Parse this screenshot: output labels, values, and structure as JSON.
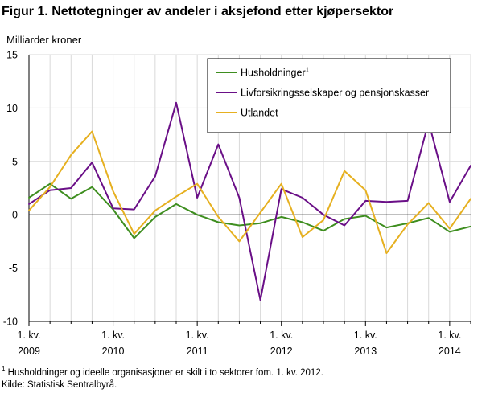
{
  "title": "Figur 1. Nettotegninger av andeler i aksjefond etter kjøpersektor",
  "y_unit_label": "Milliarder  kroner",
  "footnote_mark": "1",
  "footnote_text": " Husholdninger og ideelle organisasjoner er skilt i to sektorer fom. 1. kv. 2012.",
  "source": "Kilde: Statistisk Sentralbyrå.",
  "colors": {
    "grid": "#d9d9d9",
    "axis": "#000000"
  },
  "chart_data": {
    "type": "line",
    "quarters_per_year": 4,
    "start": "2009 Q1",
    "x_ticks": [
      {
        "line1": "1. kv.",
        "line2": "2009",
        "index": 0
      },
      {
        "line1": "1. kv.",
        "line2": "2010",
        "index": 4
      },
      {
        "line1": "1. kv.",
        "line2": "2011",
        "index": 8
      },
      {
        "line1": "1. kv.",
        "line2": "2012",
        "index": 12
      },
      {
        "line1": "1. kv.",
        "line2": "2013",
        "index": 16
      },
      {
        "line1": "1. kv.",
        "line2": "2014",
        "index": 20
      }
    ],
    "y_ticks": [
      15,
      10,
      5,
      0,
      -5,
      -10
    ],
    "ylim": [
      -10,
      15
    ],
    "grid": true,
    "legend_position": "top-right",
    "series": [
      {
        "name": "Husholdninger",
        "superscript": "1",
        "color": "#3e8e1f",
        "values": [
          1.6,
          2.9,
          1.5,
          2.6,
          0.5,
          -2.2,
          -0.2,
          1.0,
          0.0,
          -0.7,
          -1.0,
          -0.8,
          -0.2,
          -0.7,
          -1.5,
          -0.4,
          -0.1,
          -1.2,
          -0.8,
          -0.3,
          -1.6,
          -1.1
        ]
      },
      {
        "name": "Livforsikringsselskaper og pensjonskasser",
        "superscript": "",
        "color": "#6a0f87",
        "values": [
          1.0,
          2.3,
          2.5,
          4.9,
          0.6,
          0.5,
          3.6,
          10.5,
          1.6,
          6.6,
          1.6,
          -8.0,
          2.4,
          1.6,
          0.0,
          -1.0,
          1.3,
          1.2,
          1.3,
          8.7,
          1.2,
          4.6
        ]
      },
      {
        "name": "Utlandet",
        "superscript": "",
        "color": "#e6b020",
        "values": [
          0.4,
          2.6,
          5.6,
          7.8,
          2.2,
          -1.8,
          0.4,
          1.7,
          2.9,
          -0.2,
          -2.5,
          0.2,
          2.9,
          -2.1,
          -0.5,
          4.1,
          2.3,
          -3.6,
          -0.9,
          1.1,
          -1.3,
          1.5
        ]
      }
    ]
  }
}
